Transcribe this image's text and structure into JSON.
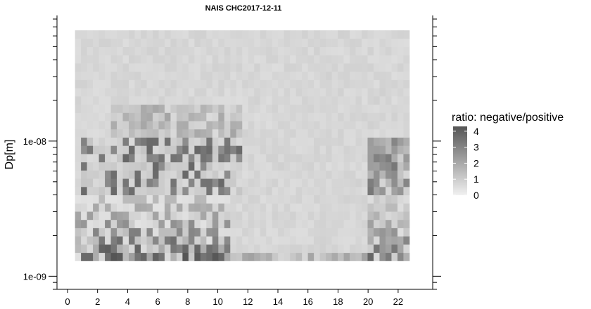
{
  "chart_data": {
    "type": "heatmap",
    "title": "NAIS CHC2017-12-11",
    "xlabel": "",
    "ylabel": "Dp[m]",
    "x_range": [
      -0.7,
      24.3
    ],
    "x_ticks": [
      0,
      2,
      4,
      6,
      8,
      10,
      12,
      14,
      16,
      18,
      20,
      22
    ],
    "x_tick_labels": [
      "0",
      "2",
      "4",
      "6",
      "8",
      "10",
      "12",
      "14",
      "16",
      "18",
      "20",
      "22"
    ],
    "y_scale": "log",
    "y_range": [
      8e-10,
      8.5e-08
    ],
    "y_major_ticks": [
      1e-09,
      1e-08
    ],
    "y_tick_labels": [
      "1e-09",
      "1e-08"
    ],
    "x_data_range": [
      0.5,
      22.75
    ],
    "y_data_range": [
      1.3e-09,
      6.6e-08
    ],
    "n_time_bins": 56,
    "n_size_bins": 28,
    "color_scale": {
      "title": "ratio: negative/positive",
      "min": 0,
      "max": 4.3,
      "ticks": [
        0,
        1,
        2,
        3,
        4
      ],
      "tick_labels": [
        "0",
        "1",
        "2",
        "3",
        "4"
      ],
      "low_color": "#f1f1f1",
      "high_color": "#555555"
    },
    "summary": "Ratio near 1 in most cells; high ratios (3-4.3) concentrated below 1.2e-08 m between hours 1-11 and hours 20-22.5",
    "grid": false,
    "legend_position": "right"
  }
}
